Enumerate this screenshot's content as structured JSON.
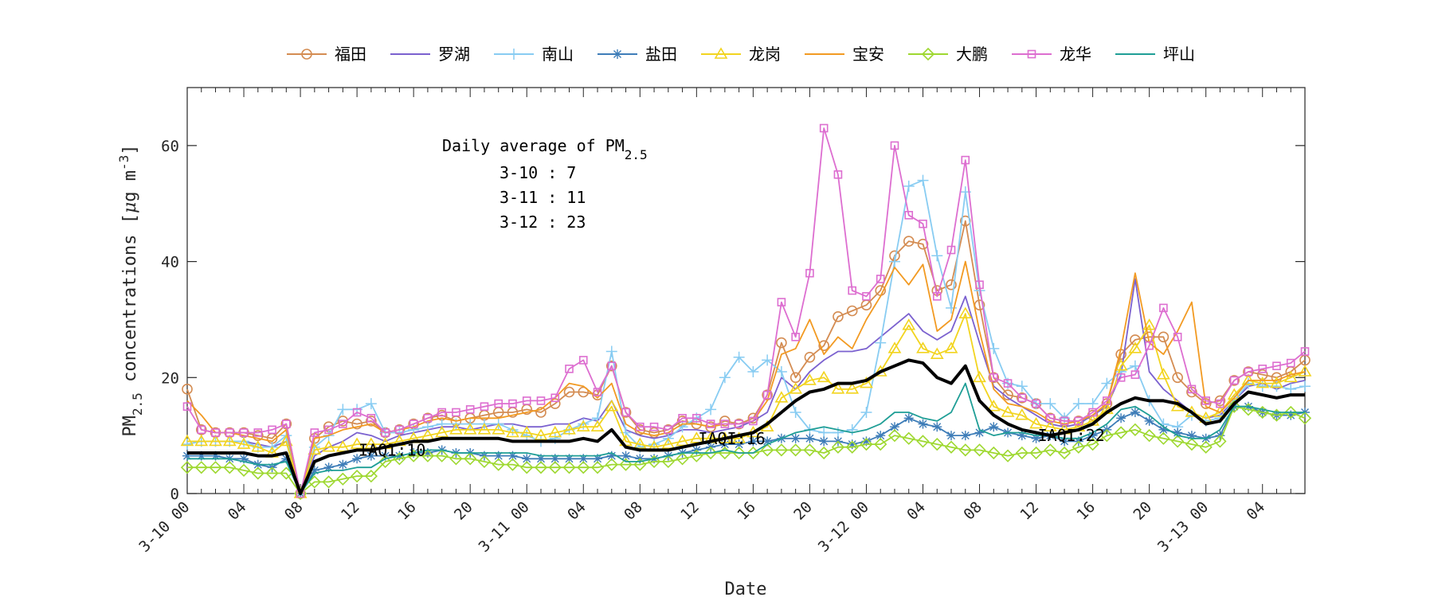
{
  "chart_data": {
    "type": "line",
    "title": "",
    "xlabel": "Date",
    "ylabel": "PM2.5 concentrations [μg m-3]",
    "ylabel_parts": {
      "main": "PM",
      "sub": "2.5",
      "rest": " concentrations [",
      "mu": "μ",
      "unit": "g m",
      "sup": "-3",
      "close": "]"
    },
    "x_range": [
      0,
      79
    ],
    "ylim": [
      0,
      70
    ],
    "y_ticks": [
      0,
      20,
      40,
      60
    ],
    "x_tick_labels": [
      {
        "x": 0,
        "label": "3-10 00"
      },
      {
        "x": 4,
        "label": "04"
      },
      {
        "x": 8,
        "label": "08"
      },
      {
        "x": 12,
        "label": "12"
      },
      {
        "x": 16,
        "label": "16"
      },
      {
        "x": 20,
        "label": "20"
      },
      {
        "x": 24,
        "label": "3-11 00"
      },
      {
        "x": 28,
        "label": "04"
      },
      {
        "x": 32,
        "label": "08"
      },
      {
        "x": 36,
        "label": "12"
      },
      {
        "x": 40,
        "label": "16"
      },
      {
        "x": 44,
        "label": "20"
      },
      {
        "x": 48,
        "label": "3-12 00"
      },
      {
        "x": 52,
        "label": "04"
      },
      {
        "x": 56,
        "label": "08"
      },
      {
        "x": 60,
        "label": "12"
      },
      {
        "x": 64,
        "label": "16"
      },
      {
        "x": 68,
        "label": "20"
      },
      {
        "x": 72,
        "label": "3-13 00"
      },
      {
        "x": 76,
        "label": "04"
      }
    ],
    "annotation": {
      "title_main": "Daily average of PM",
      "title_sub": "2.5",
      "lines": [
        "3-10 : 7",
        "3-11 : 11",
        "3-12 : 23"
      ]
    },
    "iaqi_labels": [
      {
        "text": "IAQI:10",
        "x": 12,
        "y": 7.5
      },
      {
        "text": "IAQI:16",
        "x": 36,
        "y": 9.5
      },
      {
        "text": "IAQI:22",
        "x": 60,
        "y": 10
      }
    ],
    "series": [
      {
        "name": "福田",
        "color": "#D48C52",
        "marker": "circle",
        "values": [
          18,
          11,
          10.5,
          10.5,
          10.5,
          10,
          9.5,
          12,
          0,
          9.5,
          11.5,
          12.5,
          12,
          12.5,
          10.5,
          11,
          12,
          13,
          13.5,
          12.5,
          13,
          13.5,
          14,
          14,
          14.5,
          14,
          15.5,
          17.5,
          17.5,
          17,
          22,
          14,
          11,
          10.5,
          11,
          12.5,
          12,
          11.5,
          12.5,
          12,
          13,
          17,
          26,
          20,
          23.5,
          25.5,
          30.5,
          31.5,
          32.5,
          35,
          41,
          43.5,
          43,
          35,
          36,
          47,
          32.5,
          20,
          17,
          16.5,
          15.5,
          13,
          12.5,
          12.5,
          13.5,
          15.5,
          24,
          26.5,
          27,
          27,
          20,
          17.5,
          15.5,
          16,
          19.5,
          21,
          20.5,
          20,
          21,
          23
        ]
      },
      {
        "name": "罗湖",
        "color": "#7B61CF",
        "marker": "none",
        "values": [
          9,
          9,
          9,
          9,
          9,
          8.5,
          8,
          9,
          0,
          6.5,
          8,
          9,
          10.5,
          10,
          9,
          10,
          10.5,
          11,
          11.5,
          11.5,
          11,
          11.5,
          12,
          12,
          11.5,
          11.5,
          12,
          12,
          13,
          12.5,
          16,
          11,
          10,
          9.5,
          10,
          11,
          11,
          10.5,
          11,
          11.5,
          12.5,
          14,
          20,
          18,
          21,
          23,
          24.5,
          24.5,
          25,
          27,
          29,
          31,
          28,
          26.5,
          28,
          34,
          26,
          18.5,
          16.5,
          15,
          13.5,
          12,
          11.5,
          12,
          13.5,
          15,
          20.5,
          37,
          21,
          18,
          16,
          14,
          13,
          13.5,
          16,
          18.5,
          19,
          18,
          19,
          19.5
        ]
      },
      {
        "name": "南山",
        "color": "#88CCF2",
        "marker": "plus",
        "values": [
          8.5,
          9,
          9,
          9,
          9,
          8,
          8,
          10,
          0,
          8,
          10,
          14.5,
          14.5,
          15.5,
          10.5,
          10.5,
          11,
          11.5,
          12,
          12,
          12,
          12,
          12,
          11,
          10,
          9,
          9.5,
          11,
          12,
          13,
          24.5,
          10.5,
          8,
          8.5,
          9.5,
          11.5,
          13,
          14.5,
          20,
          23.5,
          21,
          23,
          21,
          14,
          11,
          10.5,
          10.5,
          11,
          14,
          26,
          40,
          53,
          54,
          41,
          32,
          52,
          35,
          25,
          19,
          18.5,
          15.5,
          15.5,
          13,
          15.5,
          15.5,
          19,
          21,
          22,
          16,
          12,
          11.5,
          13.5,
          12.5,
          13,
          16,
          19,
          18.5,
          18.5,
          18,
          18.5
        ]
      },
      {
        "name": "盐田",
        "color": "#3E7DB8",
        "marker": "star",
        "values": [
          6.5,
          6.5,
          6.5,
          6,
          6,
          5,
          4.5,
          6,
          0,
          4,
          4.5,
          5,
          6,
          6.5,
          6.5,
          6.5,
          7,
          7,
          7.5,
          7,
          7,
          6.5,
          6.5,
          6.5,
          6,
          6,
          6,
          6,
          6,
          6,
          6.5,
          6.5,
          6,
          6,
          6.5,
          7,
          7.5,
          8,
          8.5,
          8.5,
          9,
          9,
          9.5,
          9.5,
          9.5,
          9,
          9,
          8.5,
          9,
          10,
          11.5,
          13,
          12,
          11.5,
          10,
          10,
          10.5,
          11.5,
          10.5,
          10,
          9.5,
          10,
          9,
          9,
          10,
          11,
          13,
          14,
          12.5,
          11,
          10.5,
          10,
          9.5,
          10,
          15,
          15,
          14,
          13.5,
          13.5,
          14
        ]
      },
      {
        "name": "龙岗",
        "color": "#F2D41F",
        "marker": "triangle",
        "values": [
          9,
          9,
          9,
          9,
          8.5,
          8,
          7,
          9,
          0,
          7.5,
          8,
          8,
          8.5,
          8.5,
          8.5,
          9,
          9.5,
          10,
          10.5,
          11,
          11,
          11,
          11,
          10.5,
          10.5,
          10,
          10.5,
          11,
          11.5,
          11.5,
          15,
          9,
          8.5,
          8,
          8.5,
          9,
          9.5,
          9.5,
          9.5,
          9.5,
          10.5,
          11.5,
          16.5,
          18,
          19.5,
          20,
          18,
          18,
          19,
          21,
          25,
          29,
          25,
          24,
          25,
          31,
          20,
          15,
          14,
          13.5,
          12,
          11.5,
          11,
          11.5,
          12.5,
          14.5,
          22,
          25,
          29,
          20.5,
          15,
          14,
          13,
          14,
          17,
          19.5,
          19,
          19,
          20,
          21
        ]
      },
      {
        "name": "宝安",
        "color": "#F29A22",
        "marker": "none",
        "values": [
          16,
          13.5,
          10.5,
          10.5,
          10,
          9.5,
          9,
          11,
          0,
          9.5,
          10,
          11,
          11.5,
          12,
          10.5,
          11,
          11.5,
          12.5,
          13,
          12.5,
          13,
          13,
          13,
          13.5,
          14,
          14.5,
          16.5,
          19,
          18.5,
          16.5,
          19,
          12,
          10.5,
          10,
          10.5,
          12,
          12,
          11.5,
          12,
          12,
          12.5,
          16,
          24,
          25,
          30,
          24,
          27,
          25,
          30,
          34,
          39,
          36,
          39.5,
          28,
          30,
          40,
          28,
          18,
          15.5,
          15,
          14,
          12.5,
          12,
          12.5,
          13.5,
          15.5,
          25,
          38,
          26,
          24,
          28,
          33,
          15,
          14,
          16.5,
          19.5,
          19.5,
          19.5,
          20.5,
          21
        ]
      },
      {
        "name": "大鹏",
        "color": "#9ED830",
        "marker": "diamond",
        "values": [
          4.5,
          4.5,
          4.5,
          4.5,
          4,
          3.5,
          3.5,
          3.5,
          0,
          2,
          2,
          2.5,
          3,
          3,
          5.5,
          6,
          6.5,
          6.5,
          6.5,
          6,
          6,
          5.5,
          5,
          5,
          4.5,
          4.5,
          4.5,
          4.5,
          4.5,
          4.5,
          5,
          5,
          5,
          5.5,
          5.5,
          6,
          6.5,
          7,
          7,
          7,
          7,
          7.5,
          7.5,
          7.5,
          7.5,
          7,
          8,
          8,
          8.5,
          8.5,
          10,
          9.5,
          9,
          8.5,
          8,
          7.5,
          7.5,
          7,
          6.5,
          7,
          7,
          7.5,
          7,
          8,
          8.5,
          10,
          10.5,
          11,
          10,
          9.5,
          9,
          8.5,
          8,
          9,
          15,
          14.5,
          14,
          13.5,
          14,
          13
        ]
      },
      {
        "name": "龙华",
        "color": "#DD6ED0",
        "marker": "square",
        "values": [
          15,
          11,
          10.5,
          10.5,
          10.5,
          10.5,
          11,
          12,
          0,
          10.5,
          11,
          12,
          14,
          13,
          10.5,
          11,
          12,
          13,
          14,
          14,
          14.5,
          15,
          15.5,
          15.5,
          16,
          16,
          16.5,
          21.5,
          23,
          17.5,
          22,
          14,
          11.5,
          11.5,
          11,
          13,
          13,
          12,
          12,
          12,
          12.5,
          17,
          33,
          27,
          38,
          63,
          55,
          35,
          34,
          37,
          60,
          48,
          46.5,
          34,
          42,
          57.5,
          36,
          20,
          19,
          16.5,
          15.5,
          13,
          12.5,
          12.5,
          14,
          16,
          20,
          20.5,
          25.5,
          32,
          27,
          18,
          16,
          15.5,
          19.5,
          21,
          21.5,
          22,
          22.5,
          24.5
        ]
      },
      {
        "name": "坪山",
        "color": "#1F9E96",
        "marker": "none",
        "values": [
          6,
          6,
          6,
          6,
          5.5,
          5,
          5,
          5.5,
          0,
          3.5,
          4,
          4,
          4.5,
          4.5,
          6,
          6.5,
          7,
          7.5,
          7.5,
          7,
          7,
          7,
          7,
          7,
          7,
          6.5,
          6.5,
          6.5,
          6.5,
          6.5,
          7,
          5.5,
          5.5,
          6,
          6.5,
          7,
          7,
          7,
          7.5,
          7,
          7,
          8.5,
          9.5,
          10.5,
          11,
          11.5,
          11,
          10.5,
          11,
          12,
          14,
          14,
          13,
          12.5,
          14,
          19,
          11,
          10,
          10.5,
          10.5,
          10,
          10,
          9.5,
          9.5,
          10.5,
          12,
          14.5,
          15,
          13.5,
          11.5,
          10,
          9.5,
          9.5,
          11,
          15,
          15,
          14.5,
          14,
          14,
          14
        ]
      },
      {
        "name": "average",
        "color": "#000000",
        "marker": "none",
        "legend": false,
        "values": [
          7,
          7,
          7,
          7,
          7,
          6.5,
          6.5,
          7,
          0,
          5.5,
          6.5,
          7,
          7.5,
          7.5,
          8,
          8.5,
          9,
          9,
          9.5,
          9.5,
          9.5,
          9.5,
          9.5,
          9,
          9,
          9,
          9,
          9,
          9.5,
          9,
          11,
          8,
          7.5,
          7.5,
          7.5,
          8,
          8.5,
          9,
          9.5,
          10,
          10.5,
          12,
          14,
          16,
          17.5,
          18,
          19,
          19,
          19.5,
          21,
          22,
          23,
          22.5,
          20,
          19,
          22,
          16,
          13.5,
          12,
          11,
          10.5,
          10,
          10.5,
          11,
          12,
          14,
          15.5,
          16.5,
          16,
          16,
          15.5,
          14,
          12,
          12.5,
          15.5,
          17.5,
          17,
          16.5,
          17,
          17
        ]
      }
    ]
  }
}
